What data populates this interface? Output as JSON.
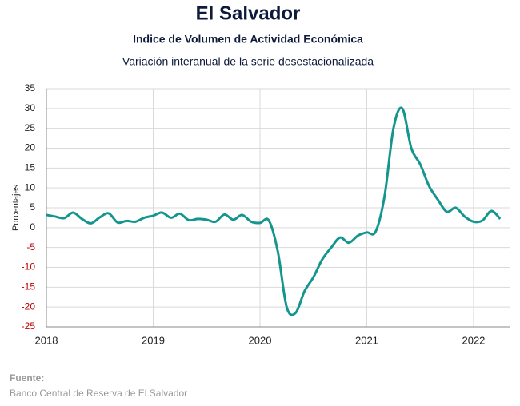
{
  "chart_data": {
    "type": "line",
    "title": "El Salvador",
    "subtitle": "Indice de Volumen de  Actividad Económica",
    "description": "Variación interanual de la serie desestacionalizada",
    "y_label": "Porcentajes",
    "source_label": "Fuente:",
    "source": "Banco Central de Reserva de El Salvador",
    "x": [
      2018.0,
      2018.083,
      2018.167,
      2018.25,
      2018.333,
      2018.417,
      2018.5,
      2018.583,
      2018.667,
      2018.75,
      2018.833,
      2018.917,
      2019.0,
      2019.083,
      2019.167,
      2019.25,
      2019.333,
      2019.417,
      2019.5,
      2019.583,
      2019.667,
      2019.75,
      2019.833,
      2019.917,
      2020.0,
      2020.083,
      2020.167,
      2020.25,
      2020.333,
      2020.417,
      2020.5,
      2020.583,
      2020.667,
      2020.75,
      2020.833,
      2020.917,
      2021.0,
      2021.083,
      2021.167,
      2021.25,
      2021.333,
      2021.417,
      2021.5,
      2021.583,
      2021.667,
      2021.75,
      2021.833,
      2021.917,
      2022.0,
      2022.083,
      2022.167,
      2022.25
    ],
    "series": [
      {
        "name": "Variación interanual",
        "color": "#14968f",
        "values": [
          3.2,
          2.8,
          2.4,
          3.8,
          2.2,
          1.1,
          2.6,
          3.6,
          1.3,
          1.7,
          1.5,
          2.5,
          3.0,
          3.8,
          2.5,
          3.5,
          1.9,
          2.2,
          2.0,
          1.5,
          3.3,
          2.0,
          3.2,
          1.5,
          1.2,
          1.8,
          -6,
          -20,
          -21.5,
          -16,
          -12.5,
          -8,
          -5,
          -2.5,
          -3.8,
          -2,
          -1.2,
          -1,
          8,
          25,
          30,
          20,
          16,
          10.5,
          7,
          4,
          5,
          2.8,
          1.5,
          1.8,
          4.2,
          2.2
        ]
      }
    ],
    "xlim": [
      2018,
      2022.345
    ],
    "xticks": [
      2018,
      2019,
      2020,
      2021,
      2022
    ],
    "ylim": [
      -25,
      35
    ],
    "yticks": [
      -25,
      -20,
      -15,
      -10,
      -5,
      0,
      5,
      10,
      15,
      20,
      25,
      30,
      35
    ],
    "grid": true,
    "negative_tick_color": "#c00000"
  }
}
